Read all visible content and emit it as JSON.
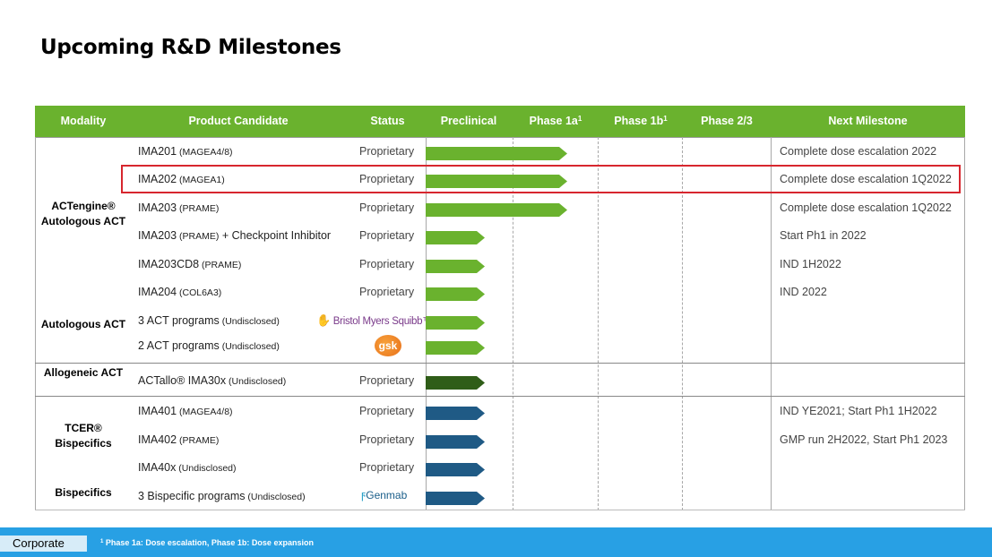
{
  "title": "Upcoming R&D Milestones",
  "columns": {
    "modality": "Modality",
    "product_candidate": "Product Candidate",
    "status": "Status",
    "preclinical": "Preclinical",
    "phase_1a": "Phase 1a",
    "phase_1a_sup": "1",
    "phase_1b": "Phase 1b",
    "phase_1b_sup": "1",
    "phase_2_3": "Phase 2/3",
    "next_milestone": "Next Milestone"
  },
  "modalities": {
    "actengine": "ACTengine® Autologous ACT",
    "autologous": "Autologous ACT",
    "allogeneic": "Allogeneic ACT",
    "tcer": "TCER® Bispecifics",
    "bispecifics": "Bispecifics"
  },
  "rows": [
    {
      "name": "IMA201",
      "target": "(MAGEA4/8)",
      "status": "Proprietary",
      "stage": "phase_1a",
      "color": "#6ab22e",
      "milestone": "Complete dose escalation 2022"
    },
    {
      "name": "IMA202",
      "target": "(MAGEA1)",
      "status": "Proprietary",
      "stage": "phase_1a",
      "color": "#6ab22e",
      "milestone": "Complete dose escalation 1Q2022",
      "highlighted": true
    },
    {
      "name": "IMA203",
      "target": "(PRAME)",
      "status": "Proprietary",
      "stage": "phase_1a",
      "color": "#6ab22e",
      "milestone": "Complete dose escalation 1Q2022"
    },
    {
      "name": "IMA203",
      "target": "(PRAME)",
      "suffix": " + Checkpoint Inhibitor",
      "status": "Proprietary",
      "stage": "preclinical",
      "color": "#6ab22e",
      "milestone": "Start Ph1 in 2022"
    },
    {
      "name": "IMA203CD8",
      "target": "(PRAME)",
      "status": "Proprietary",
      "stage": "preclinical",
      "color": "#6ab22e",
      "milestone": "IND 1H2022"
    },
    {
      "name": "IMA204",
      "target": "(COL6A3)",
      "status": "Proprietary",
      "stage": "preclinical",
      "color": "#6ab22e",
      "milestone": "IND 2022"
    },
    {
      "name": "3 ACT programs",
      "target": "(Undisclosed)",
      "partner": "Bristol Myers Squibb",
      "partner_mark": "™",
      "stage": "preclinical",
      "color": "#6ab22e",
      "milestone": ""
    },
    {
      "name": "2 ACT programs",
      "target": "(Undisclosed)",
      "partner": "gsk",
      "stage": "preclinical",
      "color": "#6ab22e",
      "milestone": ""
    },
    {
      "name": "ACTallo® IMA30x",
      "target": "(Undisclosed)",
      "status": "Proprietary",
      "stage": "preclinical",
      "color": "#2f5d18",
      "milestone": ""
    },
    {
      "name": "IMA401",
      "target": "(MAGEA4/8)",
      "status": "Proprietary",
      "stage": "preclinical",
      "color": "#1f5a85",
      "milestone": "IND YE2021; Start Ph1 1H2022"
    },
    {
      "name": "IMA402",
      "target": "(PRAME)",
      "status": "Proprietary",
      "stage": "preclinical",
      "color": "#1f5a85",
      "milestone": "GMP run 2H2022, Start Ph1 2023"
    },
    {
      "name": "IMA40x",
      "target": "(Undisclosed)",
      "status": "Proprietary",
      "stage": "preclinical",
      "color": "#1f5a85",
      "milestone": ""
    },
    {
      "name": "3 Bispecific programs",
      "target": "(Undisclosed)",
      "partner": "Genmab",
      "stage": "preclinical",
      "color": "#1f5a85",
      "milestone": ""
    }
  ],
  "footer": {
    "tag": "Corporate",
    "footnote_sup": "1",
    "footnote": "Phase 1a: Dose escalation, Phase 1b: Dose expansion"
  }
}
